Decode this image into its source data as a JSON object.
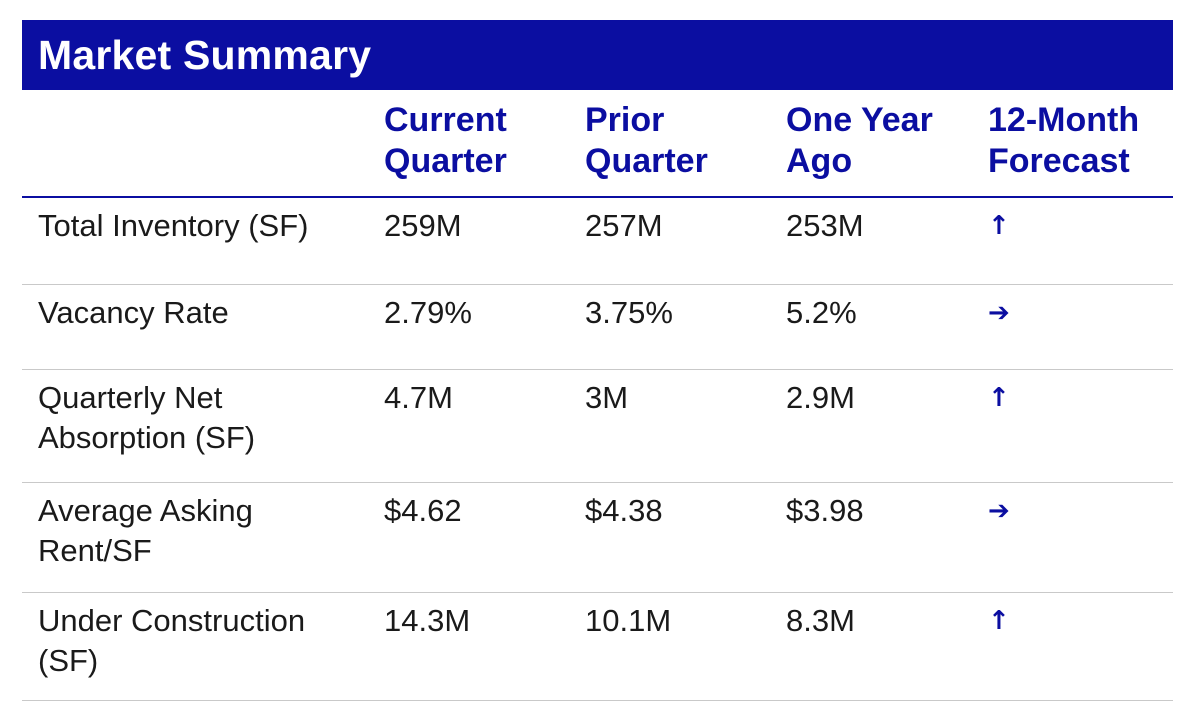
{
  "title": "Market Summary",
  "columns": [
    {
      "line1": "Current",
      "line2": "Quarter"
    },
    {
      "line1": "Prior",
      "line2": "Quarter"
    },
    {
      "line1": "One Year",
      "line2": "Ago"
    },
    {
      "line1": "12-Month",
      "line2": "Forecast"
    }
  ],
  "rows": [
    {
      "label_line1": "Total Inventory (SF)",
      "label_line2": "",
      "current": "259M",
      "prior": "257M",
      "year_ago": "253M",
      "forecast": "↑",
      "forecast_icon": "arrow-up-icon"
    },
    {
      "label_line1": "Vacancy Rate",
      "label_line2": "",
      "current": "2.79%",
      "prior": "3.75%",
      "year_ago": "5.2%",
      "forecast": "➔",
      "forecast_icon": "arrow-right-icon"
    },
    {
      "label_line1": "Quarterly Net",
      "label_line2": "Absorption (SF)",
      "current": "4.7M",
      "prior": "3M",
      "year_ago": "2.9M",
      "forecast": "↑",
      "forecast_icon": "arrow-up-icon"
    },
    {
      "label_line1": "Average Asking",
      "label_line2": "Rent/SF",
      "current": "$4.62",
      "prior": "$4.38",
      "year_ago": "$3.98",
      "forecast": "➔",
      "forecast_icon": "arrow-right-icon"
    },
    {
      "label_line1": "Under Construction",
      "label_line2": "(SF)",
      "current": "14.3M",
      "prior": "10.1M",
      "year_ago": "8.3M",
      "forecast": "↑",
      "forecast_icon": "arrow-up-icon"
    }
  ],
  "colors": {
    "accent": "#0b0ea1",
    "text": "#1a1a1a",
    "divider": "#c9c9c9"
  }
}
